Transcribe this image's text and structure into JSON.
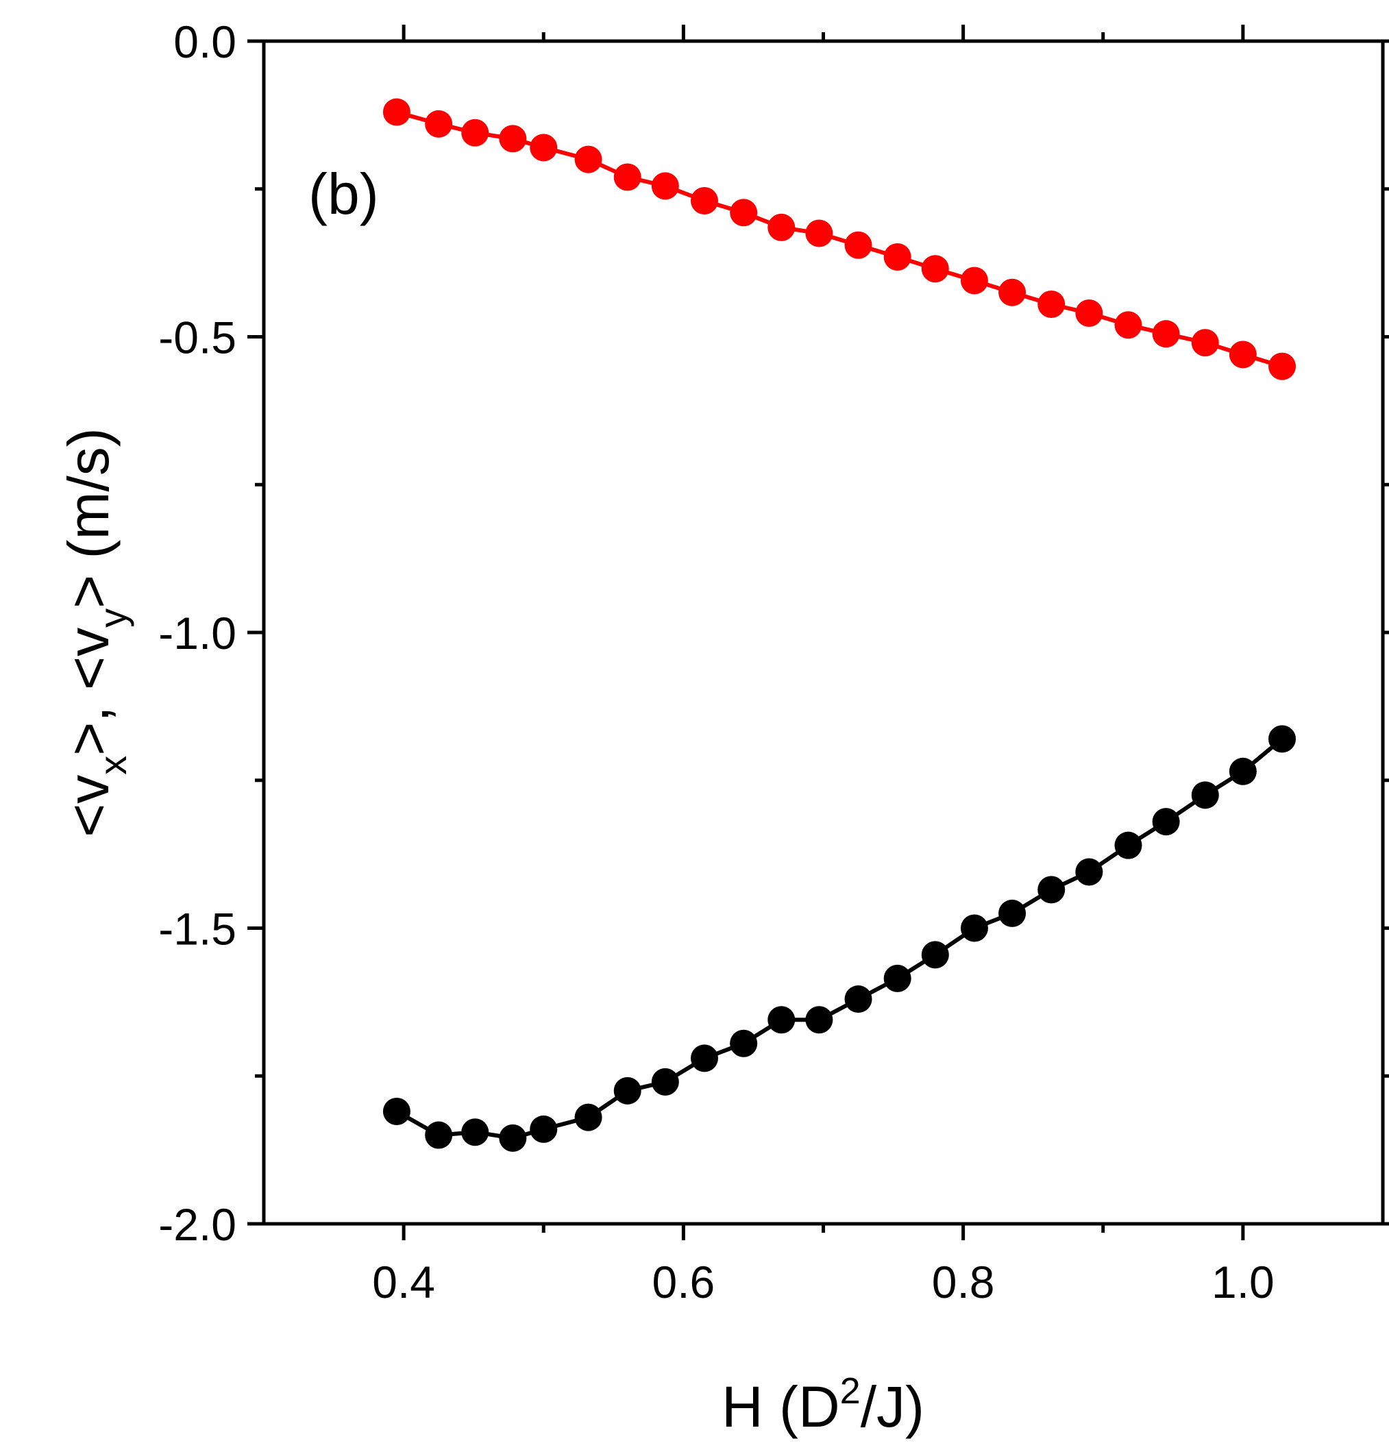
{
  "chart_data": {
    "type": "line",
    "panel_label": "(b)",
    "xlabel": {
      "prefix": "H (D",
      "sup": "2",
      "suffix": "/J)"
    },
    "ylabel": {
      "part1": "<v",
      "sub1": "x",
      "part2": ">, <v",
      "sub2": "y",
      "part3": "> (m/s)"
    },
    "xlim": [
      0.3,
      1.1
    ],
    "ylim": [
      -2.0,
      0.0
    ],
    "xticks": [
      {
        "value": 0.4,
        "label": "0.4"
      },
      {
        "value": 0.6,
        "label": "0.6"
      },
      {
        "value": 0.8,
        "label": "0.8"
      },
      {
        "value": 1.0,
        "label": "1.0"
      }
    ],
    "xminor": [
      0.5,
      0.7,
      0.9
    ],
    "yticks": [
      {
        "value": 0.0,
        "label": "0.0"
      },
      {
        "value": -0.5,
        "label": "-0.5"
      },
      {
        "value": -1.0,
        "label": "-1.0"
      },
      {
        "value": -1.5,
        "label": "-1.5"
      },
      {
        "value": -2.0,
        "label": "-2.0"
      }
    ],
    "yminor": [
      -0.25,
      -0.75,
      -1.25,
      -1.75
    ],
    "grid": false,
    "series": [
      {
        "name": "<vy>",
        "color": "#ff0000",
        "x": [
          0.395,
          0.425,
          0.451,
          0.478,
          0.5,
          0.532,
          0.56,
          0.587,
          0.615,
          0.643,
          0.67,
          0.697,
          0.725,
          0.753,
          0.78,
          0.808,
          0.835,
          0.863,
          0.89,
          0.918,
          0.945,
          0.973,
          1.0,
          1.028
        ],
        "values": [
          -0.12,
          -0.14,
          -0.155,
          -0.165,
          -0.18,
          -0.2,
          -0.23,
          -0.245,
          -0.27,
          -0.29,
          -0.315,
          -0.325,
          -0.345,
          -0.365,
          -0.385,
          -0.405,
          -0.425,
          -0.445,
          -0.46,
          -0.48,
          -0.495,
          -0.51,
          -0.53,
          -0.55
        ]
      },
      {
        "name": "<vx>",
        "color": "#000000",
        "x": [
          0.395,
          0.425,
          0.451,
          0.478,
          0.5,
          0.532,
          0.56,
          0.587,
          0.615,
          0.643,
          0.67,
          0.697,
          0.725,
          0.753,
          0.78,
          0.808,
          0.835,
          0.863,
          0.89,
          0.918,
          0.945,
          0.973,
          1.0,
          1.028
        ],
        "values": [
          -1.81,
          -1.85,
          -1.845,
          -1.855,
          -1.84,
          -1.82,
          -1.775,
          -1.76,
          -1.72,
          -1.695,
          -1.655,
          -1.655,
          -1.62,
          -1.585,
          -1.545,
          -1.5,
          -1.475,
          -1.435,
          -1.405,
          -1.36,
          -1.32,
          -1.275,
          -1.235,
          -1.18
        ]
      }
    ]
  }
}
